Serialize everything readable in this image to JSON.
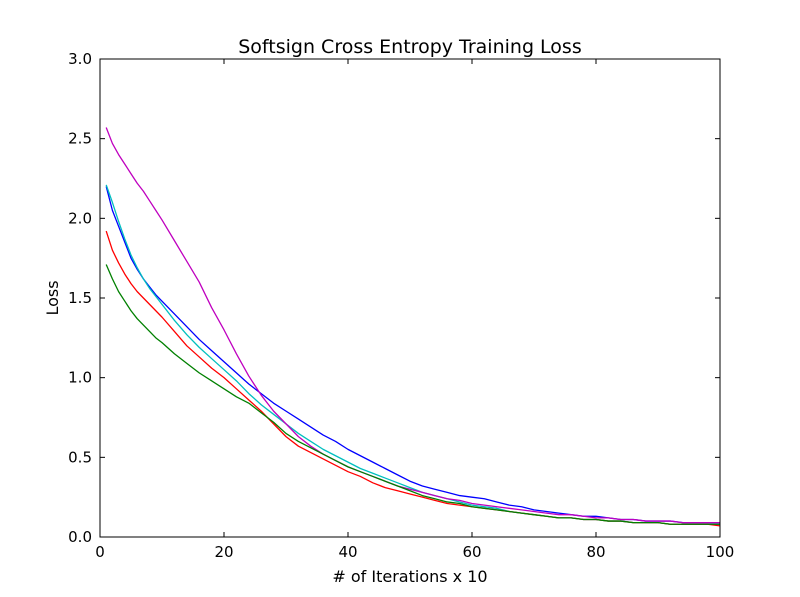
{
  "chart_data": {
    "type": "line",
    "title": "Softsign Cross Entropy Training Loss",
    "xlabel": "# of Iterations x 10",
    "ylabel": "Loss",
    "xlim": [
      0,
      100
    ],
    "ylim": [
      0.0,
      3.0
    ],
    "x_ticks": [
      "0",
      "20",
      "40",
      "60",
      "80",
      "100"
    ],
    "y_ticks": [
      "0.0",
      "0.5",
      "1.0",
      "1.5",
      "2.0",
      "2.5",
      "3.0"
    ],
    "grid": false,
    "legend": "none",
    "x": [
      1,
      2,
      3,
      4,
      5,
      6,
      7,
      8,
      9,
      10,
      12,
      14,
      16,
      18,
      20,
      22,
      24,
      26,
      28,
      30,
      32,
      34,
      36,
      38,
      40,
      42,
      44,
      46,
      48,
      50,
      52,
      54,
      56,
      58,
      60,
      62,
      64,
      66,
      68,
      70,
      72,
      74,
      76,
      78,
      80,
      82,
      84,
      86,
      88,
      90,
      92,
      94,
      96,
      98,
      100
    ],
    "series": [
      {
        "color": "#0000ff",
        "values": [
          2.2,
          2.05,
          1.95,
          1.85,
          1.75,
          1.68,
          1.62,
          1.57,
          1.52,
          1.48,
          1.4,
          1.32,
          1.24,
          1.17,
          1.1,
          1.03,
          0.96,
          0.9,
          0.84,
          0.79,
          0.74,
          0.69,
          0.64,
          0.6,
          0.55,
          0.51,
          0.47,
          0.43,
          0.39,
          0.35,
          0.32,
          0.3,
          0.28,
          0.26,
          0.25,
          0.24,
          0.22,
          0.2,
          0.19,
          0.17,
          0.16,
          0.15,
          0.14,
          0.13,
          0.13,
          0.12,
          0.11,
          0.11,
          0.1,
          0.1,
          0.1,
          0.09,
          0.09,
          0.09,
          0.09
        ]
      },
      {
        "color": "#00bfbf",
        "values": [
          2.21,
          2.1,
          1.98,
          1.87,
          1.77,
          1.69,
          1.62,
          1.56,
          1.51,
          1.46,
          1.36,
          1.27,
          1.19,
          1.12,
          1.05,
          0.98,
          0.9,
          0.83,
          0.77,
          0.71,
          0.65,
          0.6,
          0.55,
          0.51,
          0.47,
          0.43,
          0.4,
          0.37,
          0.34,
          0.31,
          0.28,
          0.26,
          0.24,
          0.22,
          0.2,
          0.19,
          0.18,
          0.16,
          0.15,
          0.14,
          0.13,
          0.12,
          0.12,
          0.11,
          0.11,
          0.1,
          0.1,
          0.09,
          0.09,
          0.09,
          0.08,
          0.08,
          0.08,
          0.08,
          0.08
        ]
      },
      {
        "color": "#bf00bf",
        "values": [
          2.57,
          2.47,
          2.4,
          2.34,
          2.28,
          2.22,
          2.17,
          2.11,
          2.05,
          1.99,
          1.86,
          1.73,
          1.6,
          1.44,
          1.3,
          1.15,
          1.01,
          0.89,
          0.79,
          0.71,
          0.63,
          0.57,
          0.52,
          0.48,
          0.44,
          0.41,
          0.38,
          0.35,
          0.32,
          0.3,
          0.28,
          0.26,
          0.24,
          0.23,
          0.21,
          0.2,
          0.19,
          0.18,
          0.17,
          0.16,
          0.15,
          0.14,
          0.14,
          0.13,
          0.12,
          0.12,
          0.11,
          0.11,
          0.1,
          0.1,
          0.1,
          0.09,
          0.09,
          0.09,
          0.09
        ]
      },
      {
        "color": "#ff0000",
        "values": [
          1.92,
          1.8,
          1.72,
          1.65,
          1.59,
          1.54,
          1.5,
          1.46,
          1.42,
          1.38,
          1.29,
          1.2,
          1.13,
          1.06,
          1.0,
          0.93,
          0.86,
          0.79,
          0.71,
          0.63,
          0.57,
          0.53,
          0.49,
          0.45,
          0.41,
          0.38,
          0.34,
          0.31,
          0.29,
          0.27,
          0.25,
          0.23,
          0.21,
          0.2,
          0.19,
          0.18,
          0.17,
          0.16,
          0.15,
          0.14,
          0.13,
          0.12,
          0.12,
          0.11,
          0.11,
          0.1,
          0.1,
          0.09,
          0.09,
          0.09,
          0.08,
          0.08,
          0.08,
          0.08,
          0.07
        ]
      },
      {
        "color": "#008000",
        "values": [
          1.71,
          1.62,
          1.54,
          1.48,
          1.42,
          1.37,
          1.33,
          1.29,
          1.25,
          1.22,
          1.15,
          1.09,
          1.03,
          0.98,
          0.93,
          0.88,
          0.84,
          0.78,
          0.72,
          0.65,
          0.6,
          0.56,
          0.52,
          0.48,
          0.44,
          0.41,
          0.38,
          0.35,
          0.32,
          0.29,
          0.26,
          0.24,
          0.22,
          0.21,
          0.19,
          0.18,
          0.17,
          0.16,
          0.15,
          0.14,
          0.13,
          0.12,
          0.12,
          0.11,
          0.11,
          0.1,
          0.1,
          0.09,
          0.09,
          0.09,
          0.08,
          0.08,
          0.08,
          0.08,
          0.08
        ]
      }
    ]
  }
}
